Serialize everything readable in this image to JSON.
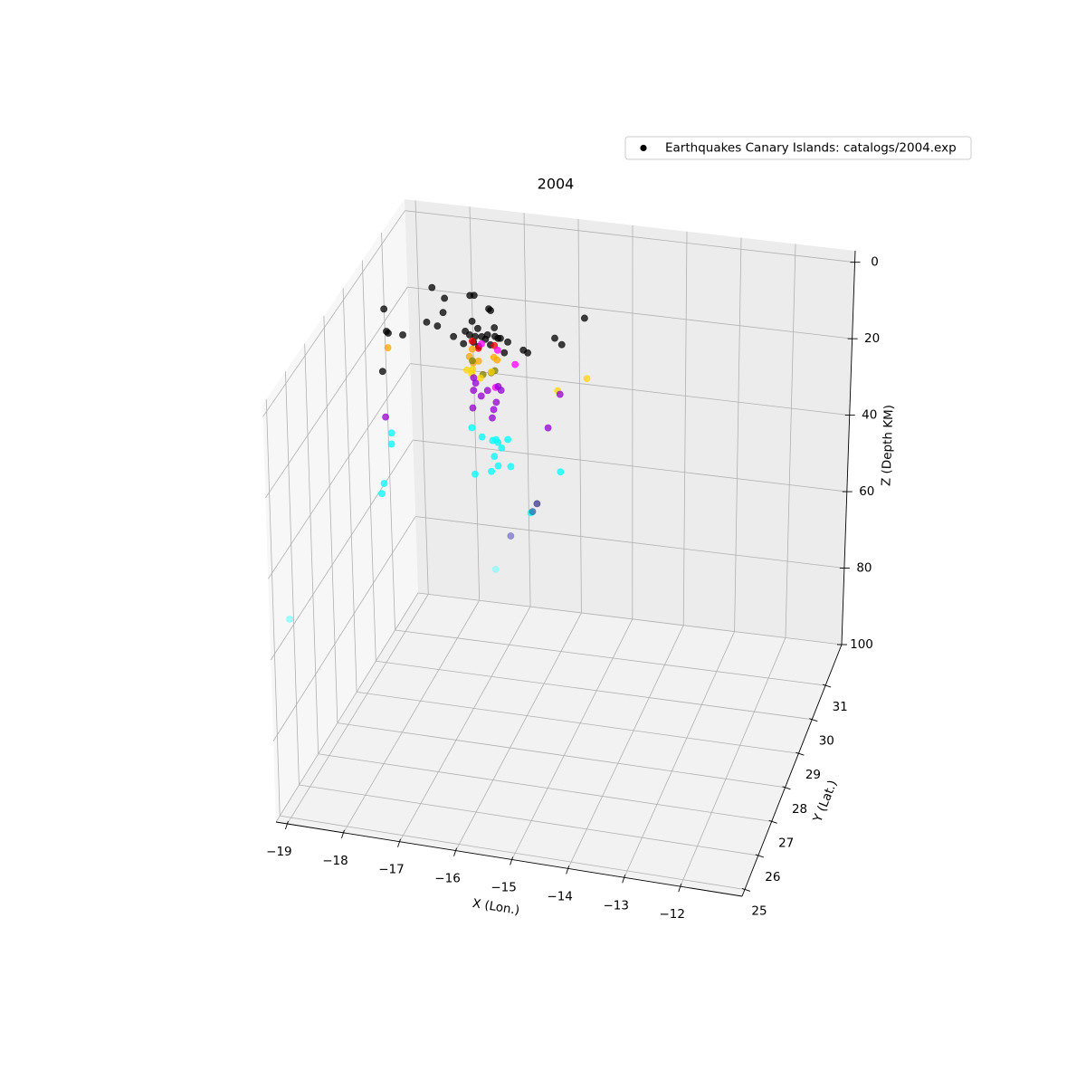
{
  "chart_data": {
    "type": "scatter3d",
    "title": "2004",
    "xlabel": "X (Lon.)",
    "ylabel": "Y (Lat.)",
    "zlabel": "Z (Depth KM)",
    "xlim": [
      -19.2,
      -10.9
    ],
    "ylim": [
      24.8,
      32.2
    ],
    "zlim": [
      -3,
      100
    ],
    "z_inverted": true,
    "grid": true,
    "legend": "upper right",
    "xticks": [
      {
        "value": -19,
        "label": "−19"
      },
      {
        "value": -18,
        "label": "−18"
      },
      {
        "value": -17,
        "label": "−17"
      },
      {
        "value": -16,
        "label": "−16"
      },
      {
        "value": -15,
        "label": "−15"
      },
      {
        "value": -14,
        "label": "−14"
      },
      {
        "value": -13,
        "label": "−13"
      },
      {
        "value": -12,
        "label": "−12"
      }
    ],
    "yticks": [
      25,
      26,
      27,
      28,
      29,
      30,
      31
    ],
    "zticks": [
      0,
      20,
      40,
      60,
      80,
      100
    ],
    "series": [
      {
        "name": "Earthquakes Canary Islands: catalogs/2004.exp",
        "color": "#000000",
        "x": [
          -18.32,
          -17.99,
          -17.59,
          -17.52,
          -18.89,
          -17.86,
          -17.13,
          -17.08,
          -18.03,
          -17.81,
          -17.28,
          -16.84,
          -17.11,
          -17.29,
          -18.55,
          -18.6,
          -18.29,
          -17.43,
          -17.18,
          -16.96,
          -16.88,
          -16.74,
          -16.67,
          -16.63,
          -17.19,
          -17.04,
          -16.91,
          -16.73,
          -16.47,
          -15.72,
          -15.41,
          -16.13,
          -16.03,
          -15.54,
          -16.42,
          -18.23,
          -16.87,
          -17.07,
          -17.28,
          -17.1,
          -16.86,
          -18.71,
          -17.25,
          -17.28,
          -16.83,
          -16.75,
          -17.12,
          -17.05,
          -17.22,
          -16.88,
          -16.44,
          -16.54,
          -17.28,
          -16.96,
          -16.84,
          -16.8,
          -17.36,
          -17.27,
          -17.24,
          -17.05,
          -15.24,
          -15.62,
          -16.93,
          -17.5,
          -17.41,
          -17.37,
          -17.18,
          -17.13,
          -16.99,
          -16.9,
          -16.86,
          -16.83,
          -16.77,
          -15.85,
          -15.73,
          -18.57,
          -17.2,
          -18.83,
          -18.71,
          -17.51,
          -17.24,
          -17.02,
          -16.97,
          -16.91,
          -16.79,
          -16.77,
          -16.83,
          -16.67,
          -16.45,
          -16.73,
          -16.98,
          -15.55,
          -18.41,
          -18.34,
          -15.67,
          -16.14,
          -16.14,
          -16.67,
          -16.8,
          -18.97
        ],
        "y": [
          31.03,
          30.73,
          30.92,
          30.94,
          30.14,
          30.26,
          30.56,
          30.51,
          29.88,
          29.8,
          30.09,
          29.97,
          29.88,
          29.74,
          29.37,
          29.42,
          29.37,
          29.52,
          29.64,
          29.63,
          29.71,
          29.69,
          29.64,
          29.65,
          29.33,
          29.42,
          29.3,
          29.4,
          29.56,
          29.87,
          30.63,
          29.36,
          29.29,
          29.69,
          29.2,
          28.1,
          29.56,
          29.61,
          30.08,
          29.87,
          30.02,
          29.78,
          29.82,
          30.07,
          29.89,
          29.82,
          29.63,
          29.71,
          30.4,
          30.26,
          29.87,
          29.06,
          30.07,
          29.67,
          29.76,
          29.84,
          30.0,
          30.05,
          29.9,
          29.8,
          30.2,
          29.7,
          30.04,
          30.77,
          30.61,
          30.37,
          30.22,
          30.42,
          30.59,
          30.48,
          30.08,
          29.84,
          29.57,
          30.58,
          29.48,
          29.17,
          29.81,
          30.17,
          29.82,
          30.65,
          30.4,
          30.33,
          30.37,
          30.29,
          30.13,
          30.42,
          29.84,
          29.56,
          29.59,
          29.36,
          29.21,
          29.62,
          28.55,
          28.22,
          28.24,
          30.11,
          29.85,
          30.21,
          29.73,
          25.15
        ],
        "z": [
          10,
          10,
          10,
          10,
          10,
          10,
          10,
          10,
          10,
          10,
          10,
          10,
          10,
          10,
          10,
          10,
          10,
          10,
          10,
          10,
          10,
          10,
          10,
          10,
          10,
          10,
          10,
          10,
          10,
          10,
          10,
          10,
          10,
          10,
          10,
          10,
          10,
          10,
          15,
          15,
          15,
          17,
          17,
          17,
          17,
          17,
          17,
          17,
          18,
          18,
          18,
          18,
          20,
          20,
          20,
          20,
          22,
          22,
          22,
          22,
          22,
          22,
          22,
          30,
          30,
          30,
          30,
          30,
          30,
          30,
          30,
          30,
          30,
          30,
          30,
          30,
          30,
          42,
          42,
          42,
          42,
          42,
          42,
          42,
          42,
          42,
          42,
          42,
          42,
          42,
          42,
          42,
          42,
          42,
          42,
          55,
          55,
          65,
          70,
          52
        ],
        "colors": [
          "#000000",
          "#000000",
          "#000000",
          "#000000",
          "#000000",
          "#000000",
          "#000000",
          "#000000",
          "#000000",
          "#000000",
          "#000000",
          "#000000",
          "#000000",
          "#000000",
          "#000000",
          "#000000",
          "#000000",
          "#000000",
          "#000000",
          "#000000",
          "#000000",
          "#000000",
          "#000000",
          "#000000",
          "#000000",
          "#000000",
          "#000000",
          "#000000",
          "#000000",
          "#000000",
          "#000000",
          "#000000",
          "#000000",
          "#000000",
          "#000000",
          "#000000",
          "#000000",
          "#000000",
          "#ff0000",
          "#ff0000",
          "#ff0000",
          "#ffa500",
          "#ffa500",
          "#ffa500",
          "#ffa500",
          "#ffa500",
          "#ffa500",
          "#ffa500",
          "#ff00ff",
          "#ff00ff",
          "#ff00ff",
          "#ff00ff",
          "#808000",
          "#808000",
          "#808000",
          "#808000",
          "#ffd700",
          "#ffd700",
          "#ffd700",
          "#ffd700",
          "#ffd700",
          "#ffd700",
          "#ffd700",
          "#9400d3",
          "#9400d3",
          "#9400d3",
          "#9400d3",
          "#9400d3",
          "#9400d3",
          "#9400d3",
          "#9400d3",
          "#9400d3",
          "#9400d3",
          "#9400d3",
          "#9400d3",
          "#9400d3",
          "#9400d3",
          "#00ffff",
          "#00ffff",
          "#00ffff",
          "#00ffff",
          "#00ffff",
          "#00ffff",
          "#00ffff",
          "#00ffff",
          "#00ffff",
          "#00ffff",
          "#00ffff",
          "#00ffff",
          "#00ffff",
          "#00ffff",
          "#00ffff",
          "#00ffff",
          "#00ffff",
          "#00ffff",
          "#3b3b8c",
          "#2a6fa8",
          "#7a74c8",
          "#90fafa",
          "#80ffff"
        ]
      }
    ]
  }
}
